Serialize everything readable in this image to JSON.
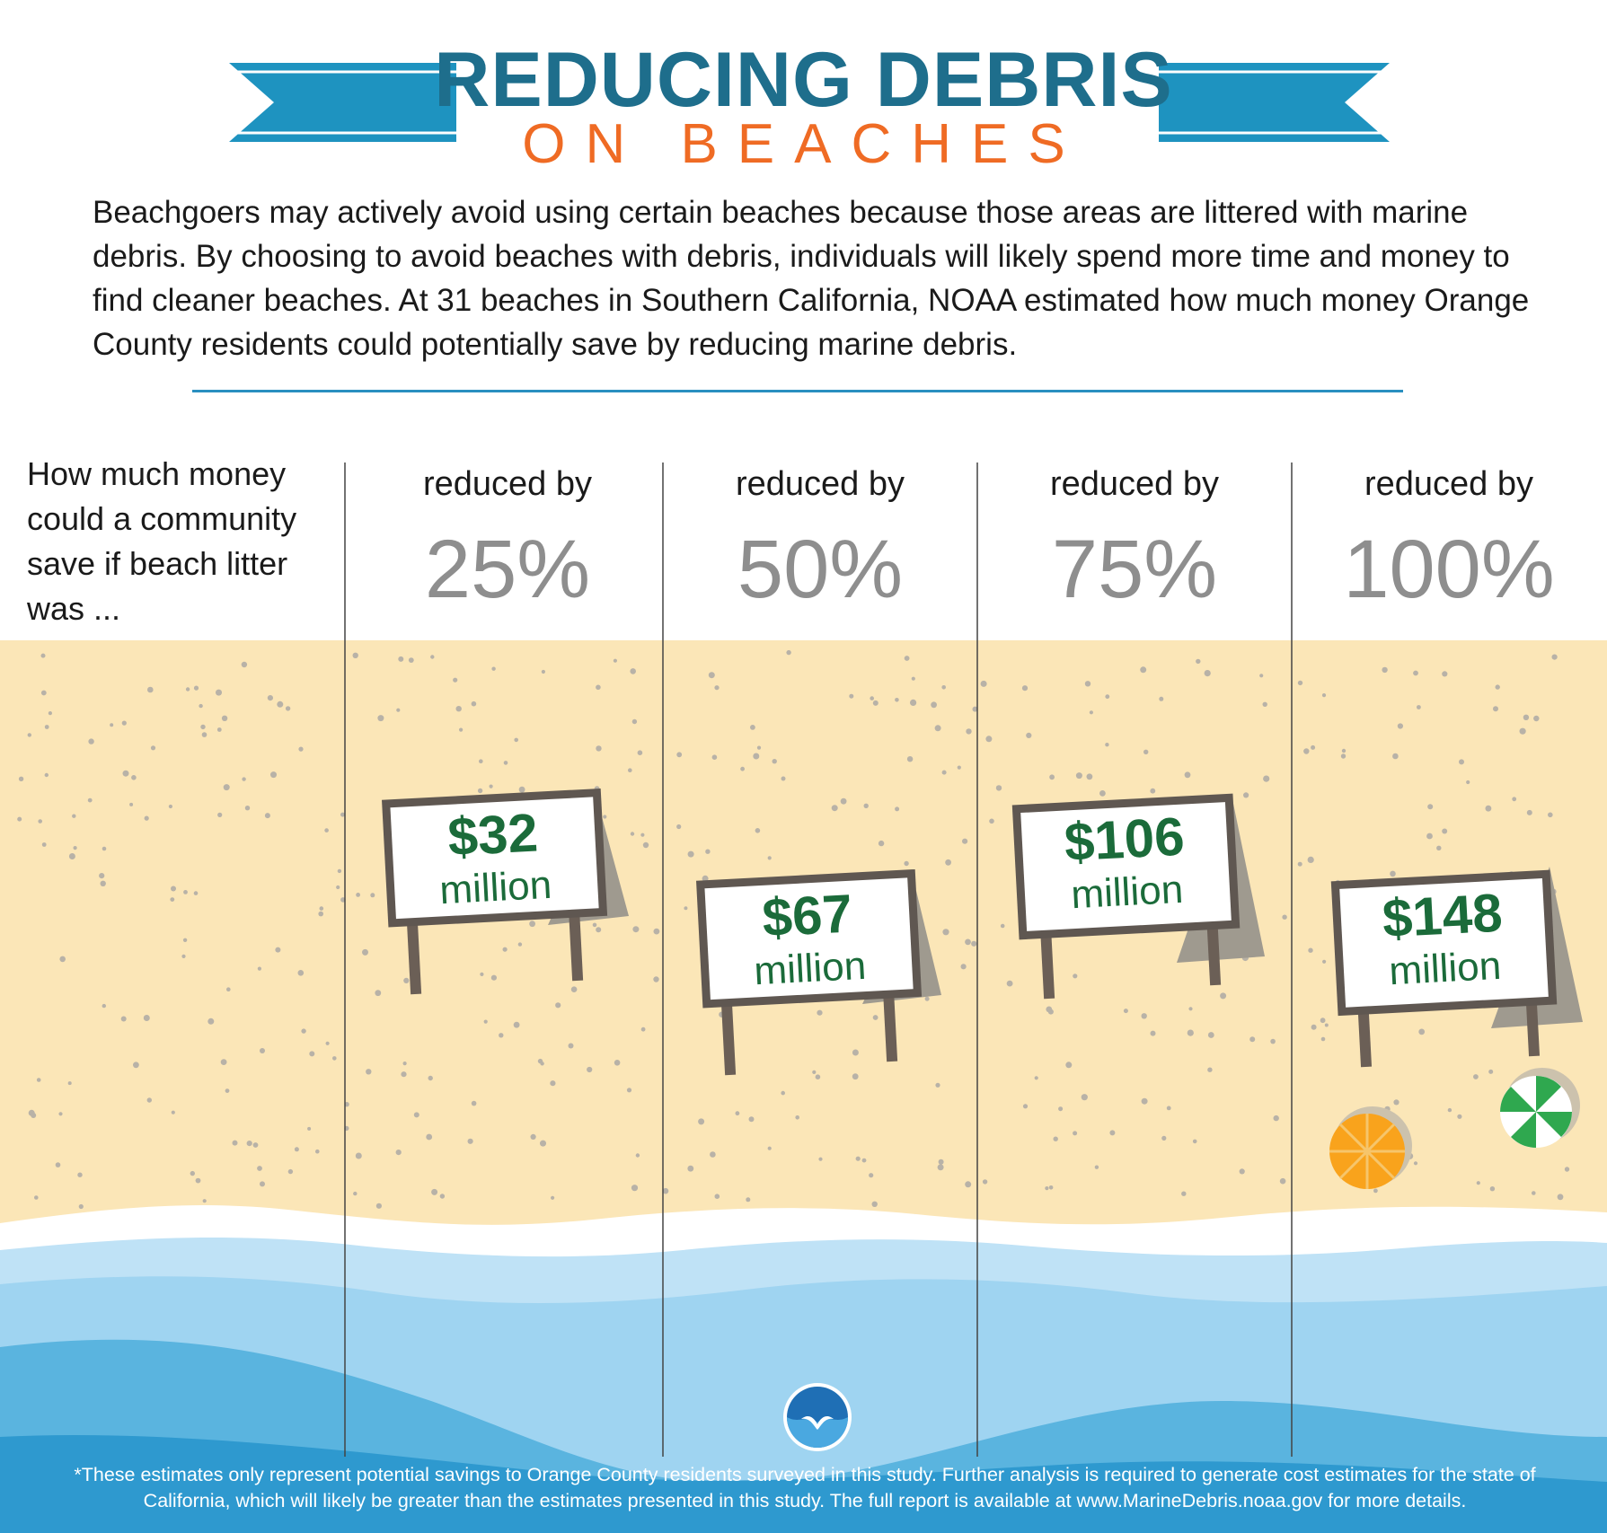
{
  "title": {
    "line1": "REDUCING DEBRIS",
    "line2": "ON BEACHES"
  },
  "intro": "Beachgoers may actively avoid using certain beaches because those areas are littered with marine debris. By choosing to avoid beaches with debris, individuals will likely spend more time and money to find cleaner beaches. At 31 beaches in Southern California, NOAA estimated how much money Orange County residents could potentially save by reducing marine debris.",
  "question": "How much money could a community save if beach litter was ...",
  "columns": [
    {
      "label": "reduced by",
      "percent": "25%",
      "amount": "$32",
      "unit": "million"
    },
    {
      "label": "reduced by",
      "percent": "50%",
      "amount": "$67",
      "unit": "million"
    },
    {
      "label": "reduced by",
      "percent": "75%",
      "amount": "$106",
      "unit": "million"
    },
    {
      "label": "reduced by",
      "percent": "100%",
      "amount": "$148",
      "unit": "million"
    }
  ],
  "logo": "NOAA",
  "footnote": "*These estimates only represent potential savings to Orange County residents surveyed in this study. Further analysis is required to generate cost estimates for the state of California, which will likely be greater than the estimates presented in this study. The full report is available at www.MarineDebris.noaa.gov for more details.",
  "colors": {
    "title": "#1e6e8c",
    "subtitle": "#ef6b24",
    "ribbon": "#1e93c0",
    "sand": "#fbe6b7",
    "sign_text": "#1b6b3a",
    "percent": "#8e8e8e"
  }
}
